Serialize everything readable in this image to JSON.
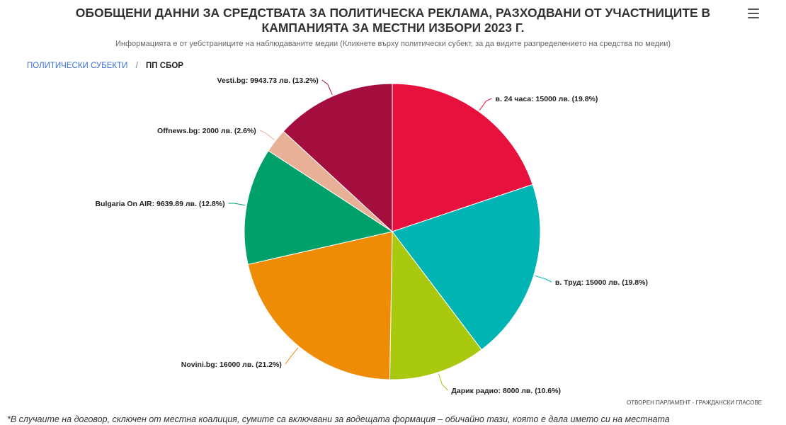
{
  "header": {
    "title_line1": "ОБОБЩЕНИ ДАННИ ЗА СРЕДСТВАТА ЗА ПОЛИТИЧЕСКА РЕКЛАМА, РАЗХОДВАНИ ОТ УЧАСТНИЦИТЕ В",
    "title_line2": "КАМПАНИЯТА ЗА МЕСТНИ ИЗБОРИ 2023 Г.",
    "subtitle": "Информацията е от уебстраниците на наблюдаваните медии (Кликнете върху политически субект, за да видите разпределението на средства по медии)",
    "menu_icon": "hamburger-menu-icon"
  },
  "breadcrumb": {
    "root": "ПОЛИТИЧЕСКИ СУБЕКТИ",
    "separator": "/",
    "current": "ПП СБОР"
  },
  "credits": "ОТВОРЕН ПАРЛАМЕНТ - ГРАЖДАНСКИ ГЛАСОВЕ",
  "footnote": "*В случаите на договор, сключен от местна коалиция, сумите са включвани за водещата формация – обичайно тази, която е дала името си на местната",
  "chart_data": {
    "type": "pie",
    "title": "",
    "slices": [
      {
        "name": "в. 24 часа",
        "value": 15000,
        "percent": 19.8,
        "label": "в. 24 часа: 15000 лв. (19.8%)",
        "color": "#e8113e"
      },
      {
        "name": "в. Труд",
        "value": 15000,
        "percent": 19.8,
        "label": "в. Труд: 15000 лв. (19.8%)",
        "color": "#00b4b4"
      },
      {
        "name": "Дарик радио",
        "value": 8000,
        "percent": 10.6,
        "label": "Дарик радио: 8000 лв. (10.6%)",
        "color": "#a8c90e"
      },
      {
        "name": "Novini.bg",
        "value": 16000,
        "percent": 21.2,
        "label": "Novini.bg: 16000 лв. (21.2%)",
        "color": "#ee8c06"
      },
      {
        "name": "Bulgaria On AIR",
        "value": 9639.89,
        "percent": 12.8,
        "label": "Bulgaria On AIR: 9639.89 лв. (12.8%)",
        "color": "#00a06a"
      },
      {
        "name": "Offnews.bg",
        "value": 2000,
        "percent": 2.6,
        "label": "Offnews.bg: 2000 лв. (2.6%)",
        "color": "#e8b096"
      },
      {
        "name": "Vesti.bg",
        "value": 9943.73,
        "percent": 13.2,
        "label": "Vesti.bg: 9943.73 лв. (13.2%)",
        "color": "#a30e3f"
      }
    ]
  }
}
